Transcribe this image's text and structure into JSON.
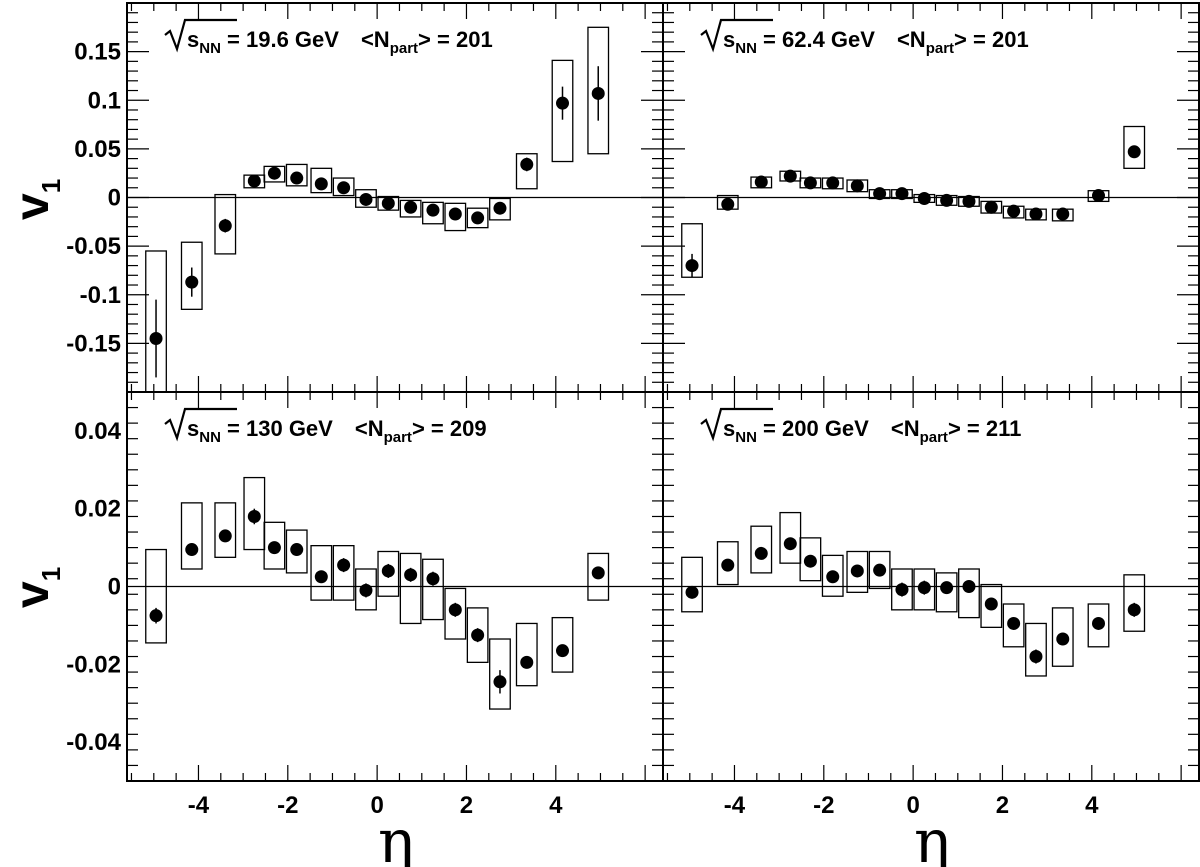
{
  "figure": {
    "y_axis_label": "v",
    "y_axis_label_sub": "1",
    "x_axis_label": "η"
  },
  "chart_data": [
    {
      "type": "scatter",
      "panel": "top-left",
      "annotation": {
        "sqrt": "s",
        "sqrt_sub": "NN",
        "energy": " = 19.6 GeV",
        "npart": "<N",
        "npart_sub": "part",
        "npart_value": "> = 201"
      },
      "xlim": [
        -5.6,
        6.4
      ],
      "ylim": [
        -0.2,
        0.2
      ],
      "ytick_values": [
        -0.15,
        -0.1,
        -0.05,
        0,
        0.05,
        0.1,
        0.15
      ],
      "ytick_labels": [
        "-0.15",
        "-0.1",
        "-0.05",
        "0",
        "0.05",
        "0.1",
        "0.15"
      ],
      "x": [
        -4.95,
        -4.15,
        -3.4,
        -2.75,
        -2.3,
        -1.8,
        -1.25,
        -0.75,
        -0.25,
        0.25,
        0.75,
        1.25,
        1.75,
        2.25,
        2.75,
        3.35,
        4.15,
        4.95
      ],
      "y": [
        -0.145,
        -0.087,
        -0.029,
        0.017,
        0.025,
        0.02,
        0.014,
        0.01,
        -0.002,
        -0.006,
        -0.01,
        -0.013,
        -0.017,
        -0.021,
        -0.011,
        0.034,
        0.097,
        0.107
      ],
      "stat_err": [
        0.04,
        0.015,
        0.007,
        0.003,
        0.003,
        0.003,
        0.003,
        0.003,
        0.003,
        0.003,
        0.003,
        0.003,
        0.003,
        0.003,
        0.003,
        0.007,
        0.017,
        0.028
      ],
      "sys_low": [
        -0.2,
        -0.115,
        -0.058,
        0.01,
        0.016,
        0.012,
        0.005,
        0.002,
        -0.01,
        -0.013,
        -0.02,
        -0.027,
        -0.034,
        -0.031,
        -0.023,
        0.009,
        0.037,
        0.045
      ],
      "sys_high": [
        -0.055,
        -0.046,
        0.003,
        0.023,
        0.032,
        0.034,
        0.03,
        0.02,
        0.008,
        0.001,
        -0.003,
        -0.005,
        -0.006,
        -0.011,
        -0.001,
        0.045,
        0.141,
        0.175
      ]
    },
    {
      "type": "scatter",
      "panel": "top-right",
      "annotation": {
        "sqrt": "s",
        "sqrt_sub": "NN",
        "energy": " = 62.4 GeV",
        "npart": "<N",
        "npart_sub": "part",
        "npart_value": "> = 201"
      },
      "xlim": [
        -5.6,
        6.4
      ],
      "ylim": [
        -0.2,
        0.2
      ],
      "x": [
        -4.95,
        -4.15,
        -3.4,
        -2.75,
        -2.3,
        -1.8,
        -1.25,
        -0.75,
        -0.25,
        0.25,
        0.75,
        1.25,
        1.75,
        2.25,
        2.75,
        3.35,
        4.15,
        4.95
      ],
      "y": [
        -0.07,
        -0.007,
        0.016,
        0.022,
        0.015,
        0.015,
        0.012,
        0.004,
        0.004,
        -0.001,
        -0.003,
        -0.004,
        -0.01,
        -0.014,
        -0.017,
        -0.017,
        0.002,
        0.047
      ],
      "stat_err": [
        0.012,
        0.003,
        0.003,
        0.003,
        0.003,
        0.003,
        0.003,
        0.003,
        0.003,
        0.003,
        0.003,
        0.003,
        0.003,
        0.003,
        0.003,
        0.003,
        0.003,
        0.004
      ],
      "sys_low": [
        -0.082,
        -0.012,
        0.01,
        0.017,
        0.01,
        0.009,
        0.006,
        -0.001,
        -0.001,
        -0.005,
        -0.008,
        -0.009,
        -0.016,
        -0.021,
        -0.023,
        -0.024,
        -0.004,
        0.03
      ],
      "sys_high": [
        -0.027,
        0.002,
        0.021,
        0.027,
        0.02,
        0.02,
        0.018,
        0.008,
        0.008,
        0.003,
        0.002,
        0.001,
        -0.004,
        -0.009,
        -0.012,
        -0.012,
        0.007,
        0.073
      ]
    },
    {
      "type": "scatter",
      "panel": "bottom-left",
      "annotation": {
        "sqrt": "s",
        "sqrt_sub": "NN",
        "energy": " = 130 GeV",
        "npart": "<N",
        "npart_sub": "part",
        "npart_value": "> = 209"
      },
      "xlim": [
        -5.6,
        6.4
      ],
      "ylim": [
        -0.05,
        0.05
      ],
      "ytick_values": [
        -0.04,
        -0.02,
        0,
        0.02,
        0.04
      ],
      "ytick_labels": [
        "-0.04",
        "-0.02",
        "0",
        "0.02",
        "0.04"
      ],
      "xtick_values": [
        -4,
        -2,
        0,
        2,
        4
      ],
      "xtick_labels": [
        "-4",
        "-2",
        "0",
        "2",
        "4"
      ],
      "x": [
        -4.95,
        -4.15,
        -3.4,
        -2.75,
        -2.3,
        -1.8,
        -1.25,
        -0.75,
        -0.25,
        0.25,
        0.75,
        1.25,
        1.75,
        2.25,
        2.75,
        3.35,
        4.15,
        4.95
      ],
      "y": [
        -0.0075,
        0.0095,
        0.013,
        0.018,
        0.01,
        0.0095,
        0.0025,
        0.0055,
        -0.001,
        0.004,
        0.003,
        0.002,
        -0.006,
        -0.0125,
        -0.0245,
        -0.0195,
        -0.0165,
        0.0035
      ],
      "stat_err": [
        0.002,
        0.001,
        0.001,
        0.002,
        0.0015,
        0.0015,
        0.0015,
        0.0018,
        0.0018,
        0.0018,
        0.0018,
        0.0018,
        0.0018,
        0.0018,
        0.003,
        0.001,
        0.001,
        0.0015
      ],
      "sys_low": [
        -0.0145,
        0.0045,
        0.0075,
        0.0095,
        0.0045,
        0.0035,
        -0.0035,
        -0.0035,
        -0.006,
        -0.0025,
        -0.0095,
        -0.0085,
        -0.0135,
        -0.0195,
        -0.0315,
        -0.0255,
        -0.022,
        -0.0035
      ],
      "sys_high": [
        0.0095,
        0.0215,
        0.0215,
        0.028,
        0.0165,
        0.0145,
        0.0105,
        0.0105,
        0.0045,
        0.009,
        0.0085,
        0.007,
        -0.0005,
        -0.0055,
        -0.0135,
        -0.0095,
        -0.008,
        0.0085
      ]
    },
    {
      "type": "scatter",
      "panel": "bottom-right",
      "annotation": {
        "sqrt": "s",
        "sqrt_sub": "NN",
        "energy": " = 200 GeV",
        "npart": "<N",
        "npart_sub": "part",
        "npart_value": "> = 211"
      },
      "xlim": [
        -5.6,
        6.4
      ],
      "ylim": [
        -0.05,
        0.05
      ],
      "xtick_values": [
        -4,
        -2,
        0,
        2,
        4
      ],
      "xtick_labels": [
        "-4",
        "-2",
        "0",
        "2",
        "4"
      ],
      "x": [
        -4.95,
        -4.15,
        -3.4,
        -2.75,
        -2.3,
        -1.8,
        -1.25,
        -0.75,
        -0.25,
        0.25,
        0.75,
        1.25,
        1.75,
        2.25,
        2.75,
        3.35,
        4.15,
        4.95
      ],
      "y": [
        -0.0015,
        0.0055,
        0.0085,
        0.011,
        0.0065,
        0.0025,
        0.004,
        0.0042,
        -0.0008,
        -0.0003,
        -0.0003,
        0,
        -0.0045,
        -0.0095,
        -0.018,
        -0.0135,
        -0.0095,
        -0.006
      ],
      "stat_err": [
        0.001,
        0.001,
        0.001,
        0.0012,
        0.001,
        0.001,
        0.001,
        0.0012,
        0.0018,
        0.0018,
        0.0015,
        0.0015,
        0.0015,
        0.0012,
        0.0018,
        0.0012,
        0.0012,
        0.0018
      ],
      "sys_low": [
        -0.0065,
        0.0005,
        0.0035,
        0.006,
        0.0015,
        -0.0025,
        -0.0015,
        -0.0005,
        -0.006,
        -0.006,
        -0.0065,
        -0.008,
        -0.0105,
        -0.0155,
        -0.023,
        -0.0205,
        -0.0155,
        -0.0115
      ],
      "sys_high": [
        0.0075,
        0.0115,
        0.0155,
        0.019,
        0.0125,
        0.008,
        0.009,
        0.009,
        0.0045,
        0.0045,
        0.0035,
        0.0045,
        0.0005,
        -0.0045,
        -0.0095,
        -0.0055,
        -0.0045,
        0.003
      ]
    }
  ]
}
